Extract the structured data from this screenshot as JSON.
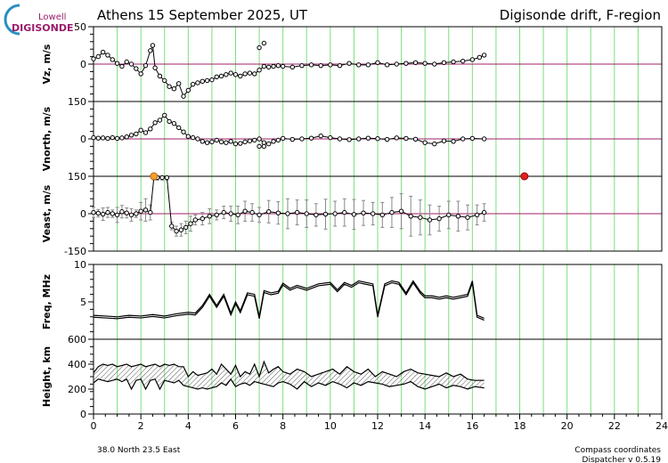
{
  "header": {
    "title_left": "Athens  15 September 2025, UT",
    "title_right": "Digisonde drift, F-region",
    "logo_small": "Lowell",
    "logo_big": "DIGISONDE"
  },
  "footer": {
    "location": "38.0 North   23.5 East",
    "coords": "Compass coordinates",
    "version": "Dispatcher v 0.5.19"
  },
  "colors": {
    "grid": "#7be07b",
    "zero_line": "#a0206a",
    "data": "#000000",
    "marker_red": "#e02020",
    "sun_orange": "#f0a030",
    "logo_blue": "#2a8fc0",
    "logo_magenta": "#9a1a6a"
  },
  "chart_data": [
    {
      "type": "scatter",
      "id": "vz",
      "ylabel": "Vz, m/s",
      "ylim": [
        -50,
        50
      ],
      "yticks": [
        0,
        50
      ],
      "x": [
        0.0,
        0.2,
        0.4,
        0.6,
        0.8,
        1.0,
        1.2,
        1.4,
        1.6,
        1.8,
        2.0,
        2.2,
        2.4,
        2.5,
        2.6,
        2.8,
        3.0,
        3.2,
        3.4,
        3.6,
        3.8,
        4.0,
        4.2,
        4.4,
        4.6,
        4.8,
        5.0,
        5.2,
        5.4,
        5.6,
        5.8,
        6.0,
        6.2,
        6.4,
        6.6,
        6.8,
        7.0,
        7.2,
        7.4,
        7.6,
        7.8,
        8.0,
        8.4,
        8.8,
        9.2,
        9.6,
        10.0,
        10.4,
        10.8,
        11.2,
        11.6,
        12.0,
        12.4,
        12.8,
        13.2,
        13.6,
        14.0,
        14.4,
        14.8,
        15.2,
        15.6,
        16.0,
        16.3,
        16.5
      ],
      "values": [
        7,
        10,
        16,
        12,
        6,
        1,
        -3,
        3,
        0,
        -6,
        -13,
        -2,
        18,
        25,
        -5,
        -16,
        -22,
        -30,
        -33,
        -26,
        -43,
        -35,
        -27,
        -25,
        -23,
        -22,
        -21,
        -17,
        -16,
        -14,
        -12,
        -14,
        -16,
        -13,
        -12,
        -13,
        -8,
        -3,
        -4,
        -3,
        -2,
        -3,
        -4,
        -2,
        -1,
        -2,
        -1,
        -2,
        1,
        -1,
        -1,
        2,
        -1,
        0,
        1,
        2,
        1,
        0,
        2,
        3,
        4,
        6,
        9,
        12
      ],
      "extra_points": {
        "x": [
          7.0,
          7.2
        ],
        "values": [
          22,
          28
        ]
      }
    },
    {
      "type": "scatter",
      "id": "vnorth",
      "ylabel": "Vnorth, m/s",
      "ylim": [
        -150,
        150
      ],
      "yticks": [
        0,
        150
      ],
      "x": [
        0.0,
        0.2,
        0.4,
        0.6,
        0.8,
        1.0,
        1.2,
        1.4,
        1.6,
        1.8,
        2.0,
        2.2,
        2.4,
        2.6,
        2.8,
        3.0,
        3.2,
        3.4,
        3.6,
        3.8,
        4.0,
        4.2,
        4.4,
        4.6,
        4.8,
        5.0,
        5.2,
        5.4,
        5.6,
        5.8,
        6.0,
        6.2,
        6.4,
        6.6,
        6.8,
        7.0,
        7.2,
        7.4,
        7.6,
        7.8,
        8.0,
        8.4,
        8.8,
        9.2,
        9.6,
        10.0,
        10.4,
        10.8,
        11.2,
        11.6,
        12.0,
        12.4,
        12.8,
        13.2,
        13.6,
        14.0,
        14.4,
        14.8,
        15.2,
        15.6,
        16.0,
        16.5
      ],
      "values": [
        5,
        3,
        4,
        2,
        5,
        2,
        4,
        8,
        15,
        20,
        35,
        25,
        40,
        65,
        75,
        95,
        70,
        62,
        45,
        28,
        10,
        5,
        0,
        -10,
        -15,
        -12,
        -5,
        -12,
        -15,
        -10,
        -20,
        -18,
        -12,
        -8,
        -5,
        0,
        -15,
        -20,
        -10,
        -5,
        2,
        -2,
        0,
        3,
        12,
        5,
        0,
        -3,
        0,
        3,
        1,
        -2,
        4,
        2,
        -1,
        -15,
        -20,
        -8,
        -10,
        0,
        2,
        0
      ],
      "extra_points": {
        "x": [
          7.0,
          7.2
        ],
        "values": [
          -30,
          -30
        ]
      }
    },
    {
      "type": "scatter",
      "id": "veast",
      "ylabel": "Veast, m/s",
      "ylim": [
        -150,
        150
      ],
      "yticks": [
        -150,
        0,
        150
      ],
      "x": [
        0.0,
        0.2,
        0.4,
        0.6,
        0.8,
        1.0,
        1.2,
        1.4,
        1.6,
        1.8,
        2.0,
        2.2,
        2.4,
        2.55,
        2.7,
        2.9,
        3.1,
        3.3,
        3.5,
        3.7,
        3.9,
        4.1,
        4.3,
        4.6,
        4.9,
        5.2,
        5.5,
        5.8,
        6.1,
        6.4,
        6.7,
        7.0,
        7.4,
        7.8,
        8.2,
        8.6,
        9.0,
        9.4,
        9.8,
        10.2,
        10.6,
        11.0,
        11.4,
        11.8,
        12.2,
        12.6,
        13.0,
        13.4,
        13.8,
        14.2,
        14.6,
        15.0,
        15.4,
        15.8,
        16.2,
        16.5
      ],
      "values": [
        5,
        2,
        -2,
        5,
        0,
        -5,
        8,
        3,
        -5,
        0,
        10,
        15,
        5,
        145,
        145,
        145,
        145,
        -50,
        -70,
        -65,
        -55,
        -40,
        -25,
        -20,
        -10,
        -5,
        5,
        0,
        -5,
        10,
        5,
        -5,
        8,
        3,
        0,
        5,
        0,
        -5,
        -2,
        0,
        5,
        -3,
        3,
        0,
        -5,
        5,
        10,
        -10,
        -15,
        -25,
        -20,
        -5,
        -10,
        -15,
        -5,
        5
      ],
      "errors": [
        20,
        15,
        25,
        20,
        15,
        30,
        25,
        20,
        25,
        15,
        35,
        45,
        30,
        10,
        10,
        10,
        10,
        15,
        20,
        25,
        25,
        30,
        20,
        25,
        30,
        20,
        25,
        30,
        35,
        40,
        35,
        30,
        45,
        45,
        60,
        50,
        55,
        45,
        60,
        50,
        55,
        60,
        50,
        45,
        50,
        60,
        70,
        80,
        70,
        60,
        50,
        55,
        60,
        50,
        40,
        35
      ],
      "markers": [
        {
          "x": 2.55,
          "y": 150,
          "kind": "sun"
        },
        {
          "x": 18.2,
          "y": 150,
          "kind": "dot"
        }
      ]
    },
    {
      "type": "line",
      "id": "freq",
      "ylabel": "Freq, MHz",
      "ylim": [
        0,
        10
      ],
      "yticks": [
        5,
        10
      ],
      "x": [
        0.0,
        0.5,
        1.0,
        1.5,
        2.0,
        2.5,
        3.0,
        3.5,
        4.0,
        4.3,
        4.6,
        4.9,
        5.2,
        5.5,
        5.8,
        6.0,
        6.2,
        6.5,
        6.8,
        7.0,
        7.2,
        7.5,
        7.8,
        8.0,
        8.3,
        8.6,
        9.0,
        9.5,
        10.0,
        10.3,
        10.6,
        10.9,
        11.2,
        11.5,
        11.8,
        12.0,
        12.3,
        12.6,
        12.9,
        13.2,
        13.5,
        13.8,
        14.0,
        14.3,
        14.6,
        14.9,
        15.2,
        15.5,
        15.8,
        16.0,
        16.2,
        16.5
      ],
      "values": [
        3.2,
        3.1,
        3.0,
        3.2,
        3.1,
        3.3,
        3.1,
        3.4,
        3.6,
        3.5,
        4.5,
        6.0,
        4.5,
        6.0,
        3.5,
        5.0,
        3.8,
        6.2,
        6.0,
        3.0,
        6.5,
        6.2,
        6.4,
        7.5,
        6.8,
        7.2,
        6.8,
        7.4,
        7.6,
        6.6,
        7.6,
        7.2,
        7.8,
        7.6,
        7.4,
        3.2,
        7.4,
        7.8,
        7.6,
        6.2,
        7.8,
        6.4,
        5.8,
        5.8,
        5.6,
        5.8,
        5.6,
        5.8,
        6.0,
        7.8,
        3.2,
        2.8
      ]
    },
    {
      "type": "area",
      "id": "height",
      "ylabel": "Height, km",
      "ylim": [
        0,
        600
      ],
      "yticks": [
        0,
        200,
        400,
        600
      ],
      "x": [
        0.0,
        0.2,
        0.4,
        0.6,
        0.8,
        1.0,
        1.2,
        1.4,
        1.6,
        1.8,
        2.0,
        2.2,
        2.4,
        2.6,
        2.8,
        3.0,
        3.2,
        3.4,
        3.6,
        3.8,
        4.0,
        4.2,
        4.4,
        4.6,
        4.8,
        5.0,
        5.2,
        5.4,
        5.6,
        5.8,
        6.0,
        6.2,
        6.4,
        6.6,
        6.8,
        7.0,
        7.2,
        7.4,
        7.6,
        7.8,
        8.0,
        8.3,
        8.6,
        8.9,
        9.2,
        9.5,
        9.8,
        10.1,
        10.4,
        10.7,
        11.0,
        11.3,
        11.6,
        11.9,
        12.2,
        12.5,
        12.8,
        13.1,
        13.4,
        13.7,
        14.0,
        14.3,
        14.6,
        14.9,
        15.2,
        15.5,
        15.8,
        16.1,
        16.5
      ],
      "top": [
        330,
        380,
        400,
        390,
        400,
        380,
        390,
        400,
        380,
        390,
        400,
        380,
        390,
        400,
        380,
        400,
        390,
        400,
        380,
        380,
        300,
        340,
        310,
        320,
        330,
        360,
        320,
        400,
        360,
        320,
        390,
        300,
        340,
        320,
        400,
        300,
        420,
        330,
        360,
        380,
        340,
        320,
        360,
        340,
        300,
        320,
        340,
        360,
        320,
        380,
        340,
        320,
        360,
        300,
        340,
        320,
        300,
        340,
        360,
        330,
        320,
        310,
        300,
        330,
        300,
        320,
        280,
        270,
        270
      ],
      "bottom": [
        250,
        280,
        270,
        260,
        270,
        280,
        260,
        280,
        200,
        270,
        280,
        200,
        270,
        280,
        200,
        270,
        260,
        250,
        270,
        230,
        220,
        210,
        200,
        210,
        200,
        210,
        220,
        250,
        230,
        280,
        220,
        240,
        250,
        230,
        260,
        250,
        240,
        230,
        220,
        250,
        260,
        240,
        200,
        260,
        220,
        250,
        230,
        260,
        240,
        210,
        250,
        230,
        260,
        250,
        240,
        220,
        230,
        240,
        260,
        220,
        200,
        220,
        240,
        210,
        230,
        220,
        200,
        220,
        210
      ]
    }
  ],
  "x_axis": {
    "xlim": [
      0,
      24
    ],
    "ticks": [
      0,
      2,
      4,
      6,
      8,
      10,
      12,
      14,
      16,
      18,
      20,
      22,
      24
    ]
  }
}
